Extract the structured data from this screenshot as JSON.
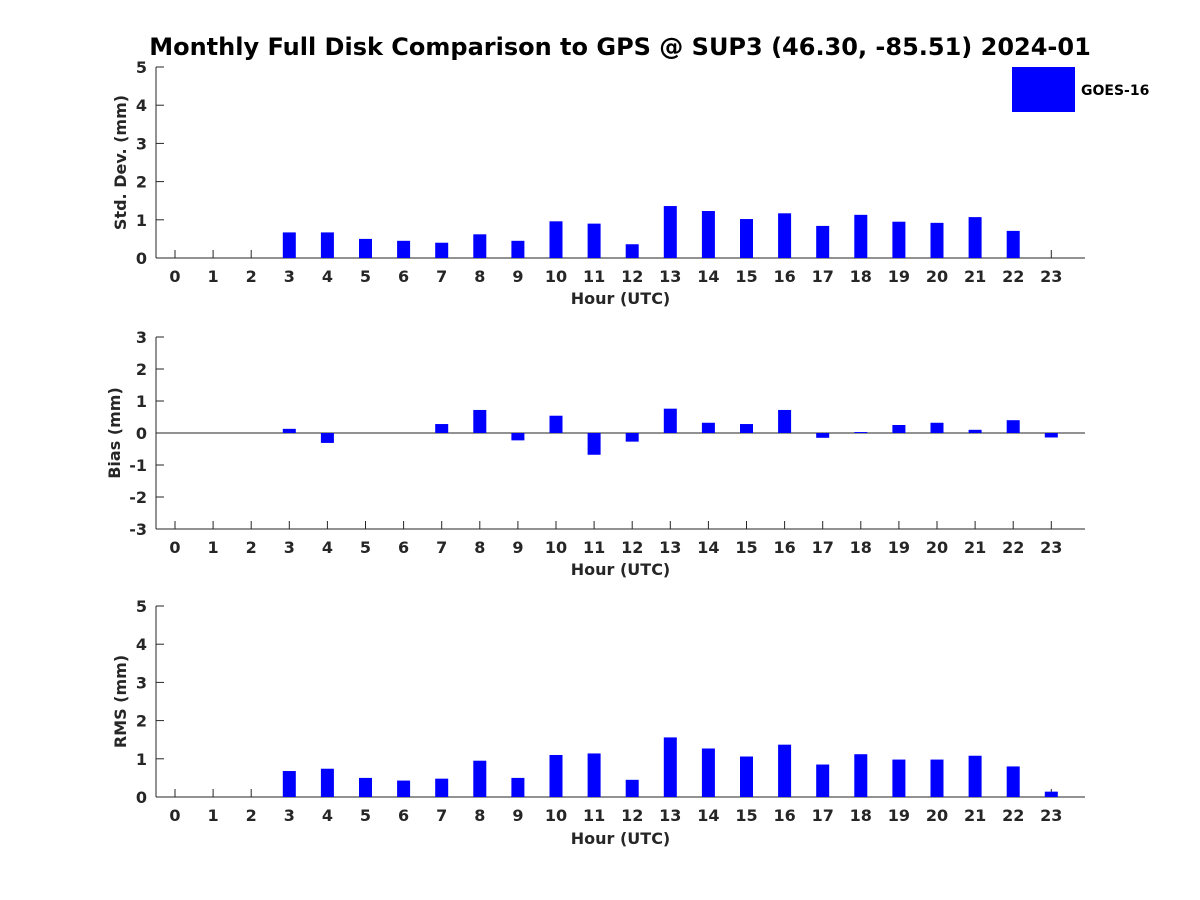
{
  "title": "Monthly Full Disk Comparison to GPS @ SUP3 (46.30, -85.51) 2024-01",
  "legend": {
    "label": "GOES-16",
    "color": "#0000ff"
  },
  "chart_data": [
    {
      "type": "bar",
      "name": "std",
      "ylabel": "Std. Dev. (mm)",
      "xlabel": "Hour (UTC)",
      "ylim": [
        0,
        5
      ],
      "yticks": [
        "0",
        "1",
        "2",
        "3",
        "4",
        "5"
      ],
      "ytick_values": [
        0,
        1,
        2,
        3,
        4,
        5
      ],
      "categories": [
        "0",
        "1",
        "2",
        "3",
        "4",
        "5",
        "6",
        "7",
        "8",
        "9",
        "10",
        "11",
        "12",
        "13",
        "14",
        "15",
        "16",
        "17",
        "18",
        "19",
        "20",
        "21",
        "22",
        "23"
      ],
      "values": [
        null,
        null,
        null,
        0.67,
        0.67,
        0.5,
        0.45,
        0.4,
        0.62,
        0.45,
        0.96,
        0.9,
        0.36,
        1.36,
        1.23,
        1.02,
        1.17,
        0.84,
        1.13,
        0.95,
        0.92,
        1.07,
        0.71,
        null
      ],
      "color": "#0000ff"
    },
    {
      "type": "bar",
      "name": "bias",
      "ylabel": "Bias (mm)",
      "xlabel": "Hour (UTC)",
      "ylim": [
        -3,
        3
      ],
      "yticks": [
        "-3",
        "-2",
        "-1",
        "0",
        "1",
        "2",
        "3"
      ],
      "ytick_values": [
        -3,
        -2,
        -1,
        0,
        1,
        2,
        3
      ],
      "categories": [
        "0",
        "1",
        "2",
        "3",
        "4",
        "5",
        "6",
        "7",
        "8",
        "9",
        "10",
        "11",
        "12",
        "13",
        "14",
        "15",
        "16",
        "17",
        "18",
        "19",
        "20",
        "21",
        "22",
        "23"
      ],
      "values": [
        null,
        null,
        null,
        0.13,
        -0.31,
        0,
        0,
        0.28,
        0.72,
        -0.23,
        0.54,
        -0.68,
        -0.27,
        0.76,
        0.32,
        0.28,
        0.72,
        -0.15,
        0.03,
        0.25,
        0.32,
        0.1,
        0.4,
        -0.14
      ],
      "color": "#0000ff"
    },
    {
      "type": "bar",
      "name": "rms",
      "ylabel": "RMS (mm)",
      "xlabel": "Hour (UTC)",
      "ylim": [
        0,
        5
      ],
      "yticks": [
        "0",
        "1",
        "2",
        "3",
        "4",
        "5"
      ],
      "ytick_values": [
        0,
        1,
        2,
        3,
        4,
        5
      ],
      "categories": [
        "0",
        "1",
        "2",
        "3",
        "4",
        "5",
        "6",
        "7",
        "8",
        "9",
        "10",
        "11",
        "12",
        "13",
        "14",
        "15",
        "16",
        "17",
        "18",
        "19",
        "20",
        "21",
        "22",
        "23"
      ],
      "values": [
        null,
        null,
        null,
        0.68,
        0.74,
        0.5,
        0.43,
        0.48,
        0.95,
        0.5,
        1.1,
        1.14,
        0.45,
        1.56,
        1.27,
        1.06,
        1.37,
        0.85,
        1.12,
        0.98,
        0.98,
        1.08,
        0.8,
        0.14
      ],
      "color": "#0000ff"
    }
  ]
}
